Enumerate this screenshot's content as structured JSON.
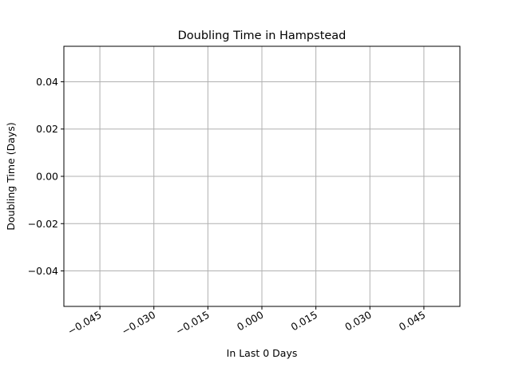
{
  "chart_data": {
    "type": "line",
    "title": "Doubling Time in  Hampstead",
    "xlabel": "In Last 0 Days",
    "ylabel": "Doubling Time (Days)",
    "x": [],
    "y": [],
    "xlim": [
      -0.055,
      0.055
    ],
    "ylim": [
      0.055,
      -0.055
    ],
    "y_inverted": true,
    "x_ticks": [
      -0.045,
      -0.03,
      -0.015,
      0.0,
      0.015,
      0.03,
      0.045
    ],
    "x_tick_labels": [
      "−0.045",
      "−0.030",
      "−0.015",
      "0.000",
      "0.015",
      "0.030",
      "0.045"
    ],
    "y_ticks": [
      -0.04,
      -0.02,
      0.0,
      0.02,
      0.04
    ],
    "y_tick_labels": [
      "−0.04",
      "−0.02",
      "0.00",
      "0.02",
      "0.04"
    ],
    "grid": true,
    "x_tick_label_rotation": "rotated 30 degrees"
  }
}
